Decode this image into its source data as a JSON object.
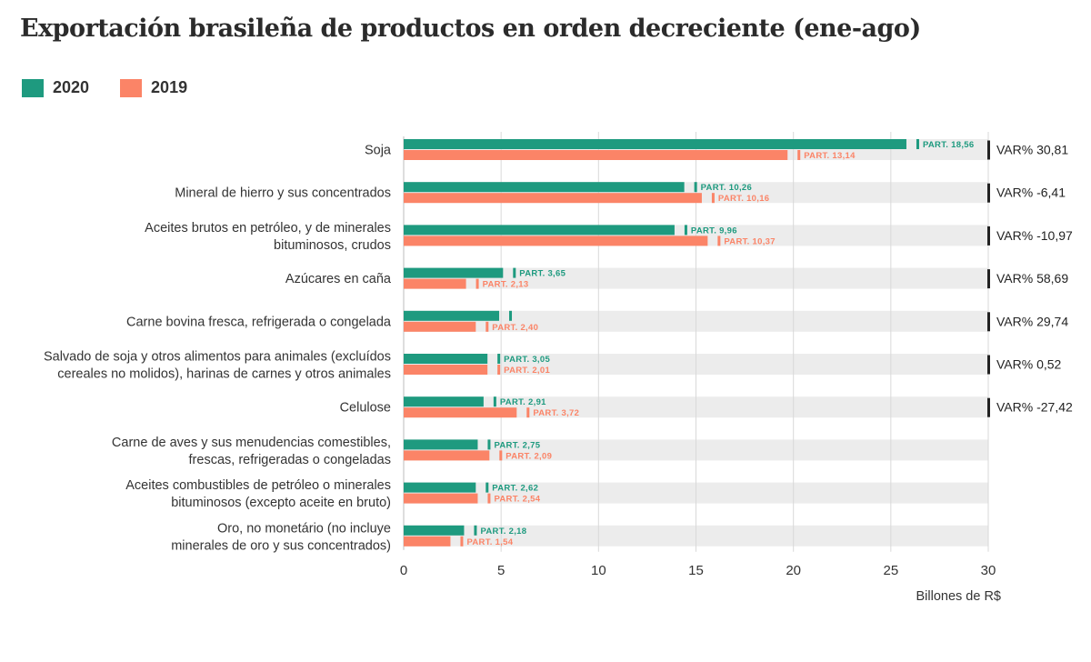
{
  "title": "Exportación brasileña de productos en orden decreciente (ene-ago)",
  "colors": {
    "s2020": "#1e9a7f",
    "s2019": "#fb8467",
    "band": "#ececec",
    "grid": "#d9d9d9"
  },
  "chart_data": {
    "type": "bar",
    "orientation": "horizontal",
    "title": "Exportación brasileña de productos en orden decreciente (ene-ago)",
    "xlabel": "Billones de R$",
    "xlim": [
      0,
      30
    ],
    "xticks": [
      "0",
      "5",
      "10",
      "15",
      "20",
      "25",
      "30"
    ],
    "legend": [
      {
        "name": "2020",
        "color": "#1e9a7f"
      },
      {
        "name": "2019",
        "color": "#fb8467"
      }
    ],
    "categories": [
      [
        "Soja"
      ],
      [
        "Mineral de hierro y sus concentrados"
      ],
      [
        "Aceites brutos en petróleo, y de minerales",
        "bituminosos, crudos"
      ],
      [
        "Azúcares en caña"
      ],
      [
        "Carne bovina fresca, refrigerada o congelada"
      ],
      [
        "Salvado de soja y otros alimentos para animales (excluídos",
        "cereales no molidos), harinas de carnes y otros animales"
      ],
      [
        "Celulose"
      ],
      [
        "Carne de aves y sus menudencias comestibles,",
        "frescas, refrigeradas o congeladas"
      ],
      [
        "Aceites combustibles de petróleo o minerales",
        "bituminosos (excepto aceite en bruto)"
      ],
      [
        "Oro, no monetário (no incluye",
        "minerales de oro y sus concentrados)"
      ]
    ],
    "series": [
      {
        "name": "2020",
        "values": [
          25.8,
          14.4,
          13.9,
          5.1,
          4.9,
          4.3,
          4.1,
          3.8,
          3.7,
          3.1
        ]
      },
      {
        "name": "2019",
        "values": [
          19.7,
          15.3,
          15.6,
          3.2,
          3.7,
          4.3,
          5.8,
          4.4,
          3.8,
          2.4
        ]
      }
    ],
    "part_labels": {
      "2020": [
        "PART. 18,56",
        "PART. 10,26",
        "PART. 9,96",
        "PART. 3,65",
        "",
        "PART. 3,05",
        "PART. 2,91",
        "PART. 2,75",
        "PART. 2,62",
        "PART. 2,18"
      ],
      "2019": [
        "PART. 13,14",
        "PART. 10,16",
        "PART. 10,37",
        "PART. 2,13",
        "PART. 2,40",
        "PART. 2,01",
        "PART. 3,72",
        "PART. 2,09",
        "PART. 2,54",
        "PART. 1,54"
      ]
    },
    "var_labels": [
      "VAR% 30,81",
      "VAR% -6,41",
      "VAR% -10,97",
      "VAR% 58,69",
      "VAR% 29,74",
      "VAR% 0,52",
      "VAR% -27,42",
      "",
      "",
      ""
    ]
  }
}
